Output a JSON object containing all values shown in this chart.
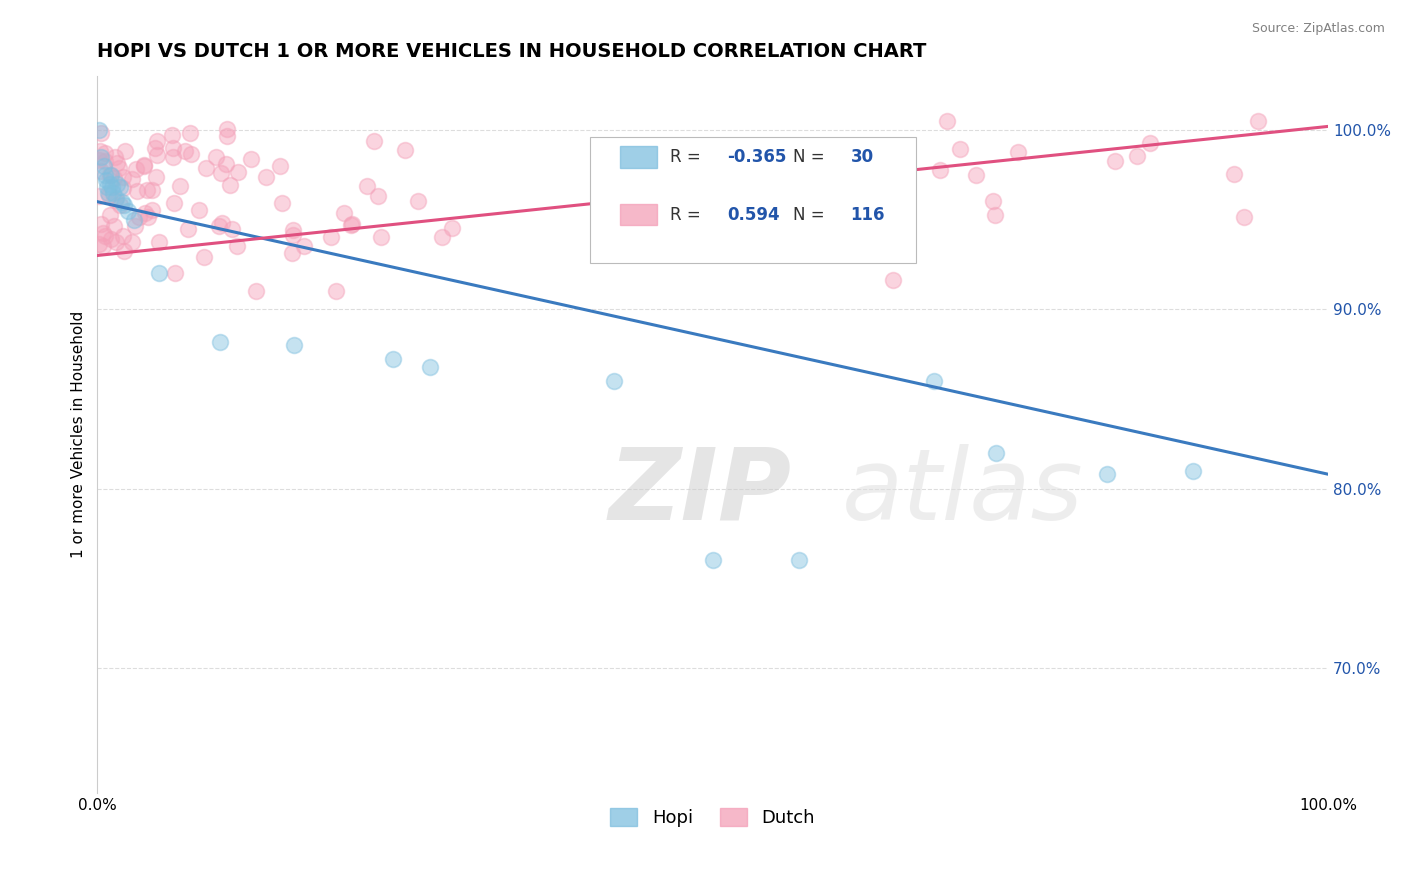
{
  "title": "HOPI VS DUTCH 1 OR MORE VEHICLES IN HOUSEHOLD CORRELATION CHART",
  "source_text": "Source: ZipAtlas.com",
  "ylabel": "1 or more Vehicles in Household",
  "watermark": "ZIPatlas",
  "xlim": [
    0.0,
    1.0
  ],
  "ylim": [
    0.63,
    1.03
  ],
  "x_ticks": [
    0.0,
    0.1,
    0.2,
    0.3,
    0.4,
    0.5,
    0.6,
    0.7,
    0.8,
    0.9,
    1.0
  ],
  "y_ticks": [
    0.7,
    0.8,
    0.9,
    1.0
  ],
  "x_tick_labels": [
    "0.0%",
    "",
    "",
    "",
    "",
    "",
    "",
    "",
    "",
    "",
    "100.0%"
  ],
  "y_tick_labels": [
    "70.0%",
    "80.0%",
    "90.0%",
    "100.0%"
  ],
  "hopi_color": "#7fbfdf",
  "dutch_color": "#f4a0b8",
  "hopi_line_color": "#3a7abf",
  "dutch_line_color": "#e05080",
  "hopi_R": -0.365,
  "hopi_N": 30,
  "dutch_R": 0.594,
  "dutch_N": 116,
  "legend_label_color": "#333333",
  "legend_value_color": "#2255aa",
  "background_color": "#ffffff",
  "grid_color": "#dddddd",
  "title_fontsize": 14,
  "label_fontsize": 11,
  "tick_fontsize": 11,
  "dot_size": 130,
  "dot_alpha": 0.45,
  "line_width": 2.2,
  "hopi_trend_x0": 0.0,
  "hopi_trend_y0": 0.96,
  "hopi_trend_x1": 1.0,
  "hopi_trend_y1": 0.808,
  "dutch_trend_x0": 0.0,
  "dutch_trend_y0": 0.93,
  "dutch_trend_x1": 1.0,
  "dutch_trend_y1": 1.002
}
